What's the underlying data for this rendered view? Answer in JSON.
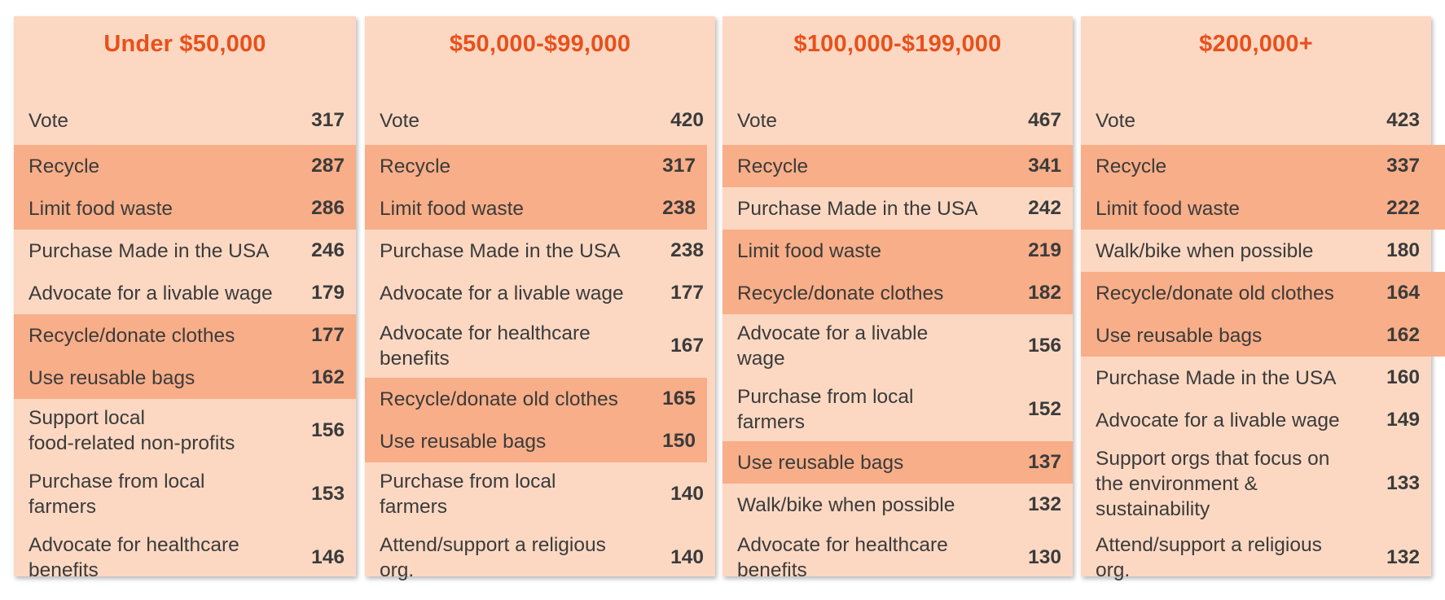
{
  "chart_data": {
    "type": "table",
    "panels": [
      {
        "title": "Under $50,000",
        "rows": [
          {
            "label": "Vote",
            "value": 317,
            "highlight": false
          },
          {
            "label": "Recycle",
            "value": 287,
            "highlight": true
          },
          {
            "label": "Limit food waste",
            "value": 286,
            "highlight": true
          },
          {
            "label": "Purchase Made in the USA",
            "value": 246,
            "highlight": false
          },
          {
            "label": "Advocate for a livable wage",
            "value": 179,
            "highlight": false
          },
          {
            "label": "Recycle/donate clothes",
            "value": 177,
            "highlight": true
          },
          {
            "label": "Use reusable bags",
            "value": 162,
            "highlight": true
          },
          {
            "label": "Support local\nfood-related non-profits",
            "value": 156,
            "highlight": false
          },
          {
            "label": "Purchase from local\nfarmers",
            "value": 153,
            "highlight": false
          },
          {
            "label": "Advocate for healthcare\nbenefits",
            "value": 146,
            "highlight": false
          }
        ]
      },
      {
        "title": "$50,000-$99,000",
        "rows": [
          {
            "label": "Vote",
            "value": 420,
            "highlight": false
          },
          {
            "label": "Recycle",
            "value": 317,
            "highlight": true
          },
          {
            "label": "Limit food waste",
            "value": 238,
            "highlight": true
          },
          {
            "label": "Purchase Made in the USA",
            "value": 238,
            "highlight": false
          },
          {
            "label": "Advocate for a livable wage",
            "value": 177,
            "highlight": false
          },
          {
            "label": "Advocate for healthcare\nbenefits",
            "value": 167,
            "highlight": false
          },
          {
            "label": "Recycle/donate old clothes",
            "value": 165,
            "highlight": true
          },
          {
            "label": "Use reusable bags",
            "value": 150,
            "highlight": true
          },
          {
            "label": "Purchase from local\nfarmers",
            "value": 140,
            "highlight": false
          },
          {
            "label": "Attend/support a religious\norg.",
            "value": 140,
            "highlight": false
          }
        ]
      },
      {
        "title": "$100,000-$199,000",
        "rows": [
          {
            "label": "Vote",
            "value": 467,
            "highlight": false
          },
          {
            "label": "Recycle",
            "value": 341,
            "highlight": true
          },
          {
            "label": "Purchase Made in the USA",
            "value": 242,
            "highlight": false
          },
          {
            "label": "Limit food waste",
            "value": 219,
            "highlight": true
          },
          {
            "label": "Recycle/donate clothes",
            "value": 182,
            "highlight": true
          },
          {
            "label": "Advocate for a livable\nwage",
            "value": 156,
            "highlight": false
          },
          {
            "label": "Purchase from local\nfarmers",
            "value": 152,
            "highlight": false
          },
          {
            "label": "Use reusable bags",
            "value": 137,
            "highlight": true
          },
          {
            "label": "Walk/bike when possible",
            "value": 132,
            "highlight": false
          },
          {
            "label": "Advocate for healthcare\nbenefits",
            "value": 130,
            "highlight": false
          }
        ]
      },
      {
        "title": "$200,000+",
        "rows": [
          {
            "label": "Vote",
            "value": 423,
            "highlight": false
          },
          {
            "label": "Recycle",
            "value": 337,
            "highlight": true
          },
          {
            "label": "Limit food waste",
            "value": 222,
            "highlight": true
          },
          {
            "label": "Walk/bike when possible",
            "value": 180,
            "highlight": false
          },
          {
            "label": "Recycle/donate old clothes",
            "value": 164,
            "highlight": true
          },
          {
            "label": "Use reusable bags",
            "value": 162,
            "highlight": true
          },
          {
            "label": "Purchase Made in the USA",
            "value": 160,
            "highlight": false
          },
          {
            "label": "Advocate for a livable wage",
            "value": 149,
            "highlight": false
          },
          {
            "label": "Support orgs that focus on\nthe environment &\nsustainability",
            "value": 133,
            "highlight": false
          },
          {
            "label": "Attend/support a religious\norg.",
            "value": 132,
            "highlight": false
          }
        ]
      }
    ]
  },
  "colors": {
    "panel_background": "#fcd8c2",
    "highlight_background": "#f8ae88",
    "title_color": "#e8501c",
    "text_color": "#3b3b3b"
  }
}
